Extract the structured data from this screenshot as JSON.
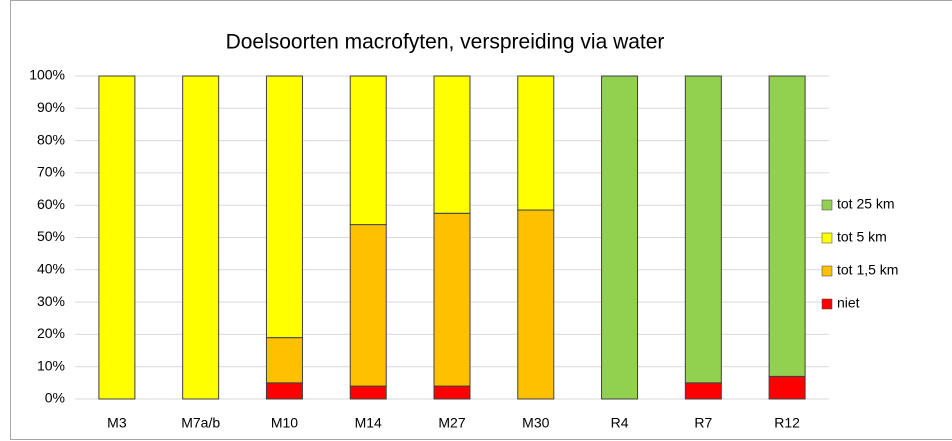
{
  "chart_data": {
    "type": "stacked_bar",
    "title": "Doelsoorten macrofyten, verspreiding via water",
    "categories": [
      "M3",
      "M7a/b",
      "M10",
      "M14",
      "M27",
      "M30",
      "R4",
      "R7",
      "R12"
    ],
    "series": [
      {
        "name": "niet",
        "color": "#ff0000",
        "values": [
          0,
          0,
          5,
          4,
          4,
          0,
          0,
          5,
          7
        ]
      },
      {
        "name": "tot 1,5 km",
        "color": "#ffc000",
        "values": [
          0,
          0,
          14,
          50,
          53.5,
          58.5,
          0,
          0,
          0
        ]
      },
      {
        "name": "tot 5 km",
        "color": "#ffff00",
        "values": [
          100,
          100,
          81,
          46,
          42.5,
          41.5,
          0,
          0,
          0
        ]
      },
      {
        "name": "tot 25 km",
        "color": "#92d050",
        "values": [
          0,
          0,
          0,
          0,
          0,
          0,
          100,
          95,
          93
        ]
      }
    ],
    "ylim": [
      0,
      100
    ],
    "yticks": [
      {
        "value": 0,
        "label": "0%"
      },
      {
        "value": 10,
        "label": "10%"
      },
      {
        "value": 20,
        "label": "20%"
      },
      {
        "value": 30,
        "label": "30%"
      },
      {
        "value": 40,
        "label": "40%"
      },
      {
        "value": 50,
        "label": "50%"
      },
      {
        "value": 60,
        "label": "60%"
      },
      {
        "value": 70,
        "label": "70%"
      },
      {
        "value": 80,
        "label": "80%"
      },
      {
        "value": 90,
        "label": "90%"
      },
      {
        "value": 100,
        "label": "100%"
      }
    ],
    "grid": true,
    "legend": "right"
  }
}
